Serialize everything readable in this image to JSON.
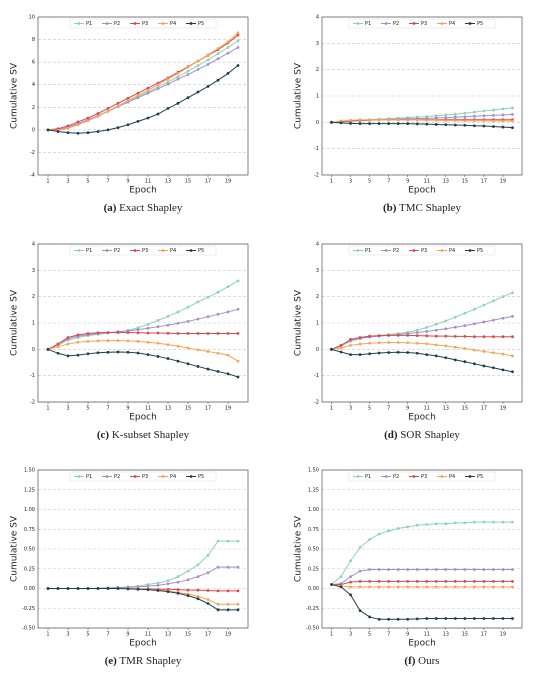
{
  "chart_data": [
    {
      "type": "line",
      "label": "(a)",
      "caption": "Exact Shapley",
      "xlabel": "Epoch",
      "ylabel": "Cumulative SV",
      "legend": "upper center",
      "grid": true,
      "x": [
        1,
        2,
        3,
        4,
        5,
        6,
        7,
        8,
        9,
        10,
        11,
        12,
        13,
        14,
        15,
        16,
        17,
        18,
        19,
        20
      ],
      "xlim": [
        0,
        21
      ],
      "xticks": [
        1,
        3,
        5,
        7,
        9,
        11,
        13,
        15,
        17,
        19
      ],
      "ylim": [
        -4,
        10
      ],
      "yticks": [
        -4,
        -2,
        0,
        2,
        4,
        6,
        8,
        10
      ],
      "series": [
        {
          "name": "P1",
          "color": "#8fd3b6",
          "values": [
            0,
            0,
            0.2,
            0.5,
            0.85,
            1.25,
            1.65,
            2.1,
            2.5,
            2.95,
            3.35,
            3.8,
            4.25,
            4.7,
            5.2,
            5.7,
            6.2,
            6.75,
            7.3,
            7.9
          ]
        },
        {
          "name": "P2",
          "color": "#a58fcf",
          "values": [
            0,
            0,
            0.25,
            0.55,
            0.9,
            1.25,
            1.65,
            2.05,
            2.45,
            2.85,
            3.25,
            3.65,
            4.05,
            4.5,
            4.9,
            5.35,
            5.8,
            6.3,
            6.8,
            7.3
          ]
        },
        {
          "name": "P3",
          "color": "#d94a4a",
          "values": [
            0,
            0.1,
            0.35,
            0.7,
            1.05,
            1.45,
            1.9,
            2.35,
            2.8,
            3.25,
            3.7,
            4.15,
            4.6,
            5.1,
            5.6,
            6.1,
            6.6,
            7.1,
            7.7,
            8.4
          ]
        },
        {
          "name": "P4",
          "color": "#f5a55a",
          "values": [
            0,
            -0.05,
            0.15,
            0.45,
            0.8,
            1.2,
            1.65,
            2.1,
            2.6,
            3.05,
            3.5,
            4.0,
            4.5,
            5.0,
            5.55,
            6.1,
            6.65,
            7.2,
            7.8,
            8.6
          ]
        },
        {
          "name": "P5",
          "color": "#1f3f4f",
          "values": [
            0,
            -0.15,
            -0.25,
            -0.3,
            -0.25,
            -0.15,
            0,
            0.2,
            0.45,
            0.75,
            1.05,
            1.4,
            1.9,
            2.35,
            2.85,
            3.35,
            3.85,
            4.4,
            5.0,
            5.7
          ]
        }
      ]
    },
    {
      "type": "line",
      "label": "(b)",
      "caption": "TMC Shapley",
      "xlabel": "Epoch",
      "ylabel": "Cumulative SV",
      "legend": "upper center",
      "grid": true,
      "x": [
        1,
        2,
        3,
        4,
        5,
        6,
        7,
        8,
        9,
        10,
        11,
        12,
        13,
        14,
        15,
        16,
        17,
        18,
        19,
        20
      ],
      "xlim": [
        0,
        21
      ],
      "xticks": [
        1,
        3,
        5,
        7,
        9,
        11,
        13,
        15,
        17,
        19
      ],
      "ylim": [
        -2,
        4
      ],
      "yticks": [
        -2,
        -1,
        0,
        1,
        2,
        3,
        4
      ],
      "series": [
        {
          "name": "P1",
          "color": "#8fd3b6",
          "values": [
            0,
            0.02,
            0.05,
            0.08,
            0.1,
            0.12,
            0.14,
            0.16,
            0.18,
            0.2,
            0.22,
            0.25,
            0.28,
            0.31,
            0.35,
            0.39,
            0.43,
            0.47,
            0.51,
            0.55
          ]
        },
        {
          "name": "P2",
          "color": "#a58fcf",
          "values": [
            0,
            0.02,
            0.04,
            0.06,
            0.08,
            0.1,
            0.11,
            0.12,
            0.13,
            0.14,
            0.15,
            0.17,
            0.18,
            0.2,
            0.21,
            0.23,
            0.25,
            0.27,
            0.28,
            0.3
          ]
        },
        {
          "name": "P3",
          "color": "#d94a4a",
          "values": [
            0,
            0.03,
            0.06,
            0.08,
            0.09,
            0.1,
            0.1,
            0.1,
            0.1,
            0.1,
            0.1,
            0.1,
            0.1,
            0.1,
            0.1,
            0.1,
            0.1,
            0.1,
            0.1,
            0.1
          ]
        },
        {
          "name": "P4",
          "color": "#f5a55a",
          "values": [
            0,
            0.05,
            0.08,
            0.1,
            0.1,
            0.1,
            0.1,
            0.1,
            0.09,
            0.09,
            0.08,
            0.08,
            0.07,
            0.07,
            0.06,
            0.06,
            0.06,
            0.05,
            0.05,
            0.05
          ]
        },
        {
          "name": "P5",
          "color": "#1f3f4f",
          "values": [
            0,
            -0.02,
            -0.04,
            -0.05,
            -0.05,
            -0.05,
            -0.05,
            -0.05,
            -0.05,
            -0.06,
            -0.07,
            -0.08,
            -0.09,
            -0.1,
            -0.11,
            -0.13,
            -0.14,
            -0.16,
            -0.18,
            -0.2
          ]
        }
      ]
    },
    {
      "type": "line",
      "label": "(c)",
      "caption": "K-subset Shapley",
      "xlabel": "Epoch",
      "ylabel": "Cumulative SV",
      "legend": "upper center",
      "grid": true,
      "x": [
        1,
        2,
        3,
        4,
        5,
        6,
        7,
        8,
        9,
        10,
        11,
        12,
        13,
        14,
        15,
        16,
        17,
        18,
        19,
        20
      ],
      "xlim": [
        0,
        21
      ],
      "xticks": [
        1,
        3,
        5,
        7,
        9,
        11,
        13,
        15,
        17,
        19
      ],
      "ylim": [
        -2,
        4
      ],
      "yticks": [
        -2,
        -1,
        0,
        1,
        2,
        3,
        4
      ],
      "series": [
        {
          "name": "P1",
          "color": "#8fd3b6",
          "values": [
            0,
            0.15,
            0.35,
            0.45,
            0.52,
            0.57,
            0.62,
            0.66,
            0.72,
            0.82,
            0.95,
            1.1,
            1.25,
            1.42,
            1.6,
            1.8,
            1.98,
            2.17,
            2.38,
            2.6
          ]
        },
        {
          "name": "P2",
          "color": "#a58fcf",
          "values": [
            0,
            0.2,
            0.4,
            0.5,
            0.55,
            0.6,
            0.63,
            0.67,
            0.7,
            0.75,
            0.8,
            0.86,
            0.92,
            0.99,
            1.06,
            1.15,
            1.24,
            1.33,
            1.42,
            1.52
          ]
        },
        {
          "name": "P3",
          "color": "#d94a4a",
          "values": [
            0,
            0.2,
            0.45,
            0.55,
            0.6,
            0.63,
            0.64,
            0.64,
            0.64,
            0.63,
            0.62,
            0.62,
            0.61,
            0.6,
            0.6,
            0.6,
            0.6,
            0.6,
            0.6,
            0.6
          ]
        },
        {
          "name": "P4",
          "color": "#f5a55a",
          "values": [
            0,
            0.1,
            0.2,
            0.27,
            0.3,
            0.32,
            0.33,
            0.33,
            0.32,
            0.3,
            0.27,
            0.23,
            0.18,
            0.12,
            0.05,
            -0.02,
            -0.08,
            -0.15,
            -0.22,
            -0.45
          ]
        },
        {
          "name": "P5",
          "color": "#1f3f4f",
          "values": [
            0,
            -0.15,
            -0.25,
            -0.22,
            -0.17,
            -0.13,
            -0.11,
            -0.1,
            -0.11,
            -0.14,
            -0.2,
            -0.27,
            -0.35,
            -0.45,
            -0.55,
            -0.65,
            -0.75,
            -0.84,
            -0.93,
            -1.05
          ]
        }
      ]
    },
    {
      "type": "line",
      "label": "(d)",
      "caption": "SOR Shapley",
      "xlabel": "Epoch",
      "ylabel": "Cumulative SV",
      "legend": "upper center",
      "grid": true,
      "x": [
        1,
        2,
        3,
        4,
        5,
        6,
        7,
        8,
        9,
        10,
        11,
        12,
        13,
        14,
        15,
        16,
        17,
        18,
        19,
        20
      ],
      "xlim": [
        0,
        21
      ],
      "xticks": [
        1,
        3,
        5,
        7,
        9,
        11,
        13,
        15,
        17,
        19
      ],
      "ylim": [
        -2,
        4
      ],
      "yticks": [
        -2,
        -1,
        0,
        1,
        2,
        3,
        4
      ],
      "series": [
        {
          "name": "P1",
          "color": "#8fd3b6",
          "values": [
            0,
            0.12,
            0.3,
            0.4,
            0.47,
            0.52,
            0.56,
            0.6,
            0.65,
            0.73,
            0.83,
            0.95,
            1.08,
            1.22,
            1.37,
            1.52,
            1.68,
            1.84,
            2.0,
            2.15
          ]
        },
        {
          "name": "P2",
          "color": "#a58fcf",
          "values": [
            0,
            0.15,
            0.35,
            0.43,
            0.47,
            0.5,
            0.53,
            0.56,
            0.6,
            0.64,
            0.68,
            0.73,
            0.78,
            0.84,
            0.9,
            0.97,
            1.04,
            1.11,
            1.18,
            1.25
          ]
        },
        {
          "name": "P3",
          "color": "#d94a4a",
          "values": [
            0,
            0.15,
            0.38,
            0.45,
            0.5,
            0.52,
            0.53,
            0.53,
            0.53,
            0.52,
            0.51,
            0.5,
            0.5,
            0.49,
            0.49,
            0.48,
            0.48,
            0.48,
            0.48,
            0.48
          ]
        },
        {
          "name": "P4",
          "color": "#f5a55a",
          "values": [
            0,
            0.05,
            0.15,
            0.2,
            0.23,
            0.25,
            0.26,
            0.26,
            0.25,
            0.23,
            0.21,
            0.17,
            0.13,
            0.08,
            0.03,
            -0.03,
            -0.08,
            -0.13,
            -0.18,
            -0.25
          ]
        },
        {
          "name": "P5",
          "color": "#1f3f4f",
          "values": [
            0,
            -0.1,
            -0.2,
            -0.2,
            -0.17,
            -0.14,
            -0.12,
            -0.11,
            -0.12,
            -0.15,
            -0.2,
            -0.25,
            -0.32,
            -0.4,
            -0.47,
            -0.55,
            -0.63,
            -0.7,
            -0.78,
            -0.85
          ]
        }
      ]
    },
    {
      "type": "line",
      "label": "(e)",
      "caption": "TMR Shapley",
      "xlabel": "Epoch",
      "ylabel": "Cumulative SV",
      "legend": "upper center",
      "grid": true,
      "x": [
        1,
        2,
        3,
        4,
        5,
        6,
        7,
        8,
        9,
        10,
        11,
        12,
        13,
        14,
        15,
        16,
        17,
        18,
        19,
        20
      ],
      "xlim": [
        0,
        21
      ],
      "xticks": [
        1,
        3,
        5,
        7,
        9,
        11,
        13,
        15,
        17,
        19
      ],
      "ylim": [
        -0.5,
        1.5
      ],
      "yticks": [
        {
          "value": -0.5,
          "label": "-0.50"
        },
        {
          "value": -0.25,
          "label": "-0.25"
        },
        {
          "value": 0,
          "label": "0.00"
        },
        {
          "value": 0.25,
          "label": "0.25"
        },
        {
          "value": 0.5,
          "label": "0.50"
        },
        {
          "value": 0.75,
          "label": "0.75"
        },
        {
          "value": 1,
          "label": "1.00"
        },
        {
          "value": 1.25,
          "label": "1.25"
        },
        {
          "value": 1.5,
          "label": "1.50"
        }
      ],
      "series": [
        {
          "name": "P1",
          "color": "#8fd3b6",
          "values": [
            0,
            0,
            0,
            0,
            0,
            0.005,
            0.01,
            0.015,
            0.02,
            0.03,
            0.05,
            0.07,
            0.1,
            0.15,
            0.22,
            0.3,
            0.42,
            0.6,
            0.6,
            0.6
          ]
        },
        {
          "name": "P2",
          "color": "#a58fcf",
          "values": [
            0,
            0,
            0,
            0,
            0,
            0,
            0.005,
            0.01,
            0.015,
            0.02,
            0.03,
            0.04,
            0.06,
            0.08,
            0.11,
            0.15,
            0.2,
            0.27,
            0.27,
            0.27
          ]
        },
        {
          "name": "P3",
          "color": "#d94a4a",
          "values": [
            0,
            0,
            0,
            0,
            0,
            0,
            0,
            0,
            0,
            -0.005,
            -0.005,
            -0.01,
            -0.01,
            -0.015,
            -0.02,
            -0.02,
            -0.025,
            -0.03,
            -0.03,
            -0.03
          ]
        },
        {
          "name": "P4",
          "color": "#f5a55a",
          "values": [
            0,
            0,
            0,
            0,
            0,
            0,
            0,
            0,
            0,
            -0.005,
            -0.01,
            -0.02,
            -0.03,
            -0.05,
            -0.07,
            -0.1,
            -0.14,
            -0.2,
            -0.2,
            -0.2
          ]
        },
        {
          "name": "P5",
          "color": "#1f3f4f",
          "values": [
            0,
            0,
            0,
            0,
            0,
            0,
            0,
            0,
            -0.005,
            -0.01,
            -0.015,
            -0.025,
            -0.04,
            -0.06,
            -0.09,
            -0.13,
            -0.19,
            -0.27,
            -0.27,
            -0.27
          ]
        }
      ]
    },
    {
      "type": "line",
      "label": "(f)",
      "caption": "Ours",
      "xlabel": "Epoch",
      "ylabel": "Cumulative SV",
      "legend": "upper center",
      "grid": true,
      "x": [
        1,
        2,
        3,
        4,
        5,
        6,
        7,
        8,
        9,
        10,
        11,
        12,
        13,
        14,
        15,
        16,
        17,
        18,
        19,
        20
      ],
      "xlim": [
        0,
        21
      ],
      "xticks": [
        1,
        3,
        5,
        7,
        9,
        11,
        13,
        15,
        17,
        19
      ],
      "ylim": [
        -0.5,
        1.5
      ],
      "yticks": [
        {
          "value": -0.5,
          "label": "-0.50"
        },
        {
          "value": -0.25,
          "label": "-0.25"
        },
        {
          "value": 0,
          "label": "0.00"
        },
        {
          "value": 0.25,
          "label": "0.25"
        },
        {
          "value": 0.5,
          "label": "0.50"
        },
        {
          "value": 0.75,
          "label": "0.75"
        },
        {
          "value": 1,
          "label": "1.00"
        },
        {
          "value": 1.25,
          "label": "1.25"
        },
        {
          "value": 1.5,
          "label": "1.50"
        }
      ],
      "series": [
        {
          "name": "P1",
          "color": "#8fd3b6",
          "values": [
            0.05,
            0.15,
            0.35,
            0.52,
            0.62,
            0.69,
            0.73,
            0.76,
            0.78,
            0.8,
            0.81,
            0.82,
            0.82,
            0.83,
            0.83,
            0.84,
            0.84,
            0.84,
            0.84,
            0.84
          ]
        },
        {
          "name": "P2",
          "color": "#a58fcf",
          "values": [
            0.05,
            0.06,
            0.15,
            0.22,
            0.24,
            0.24,
            0.24,
            0.24,
            0.24,
            0.24,
            0.24,
            0.24,
            0.24,
            0.24,
            0.24,
            0.24,
            0.24,
            0.24,
            0.24,
            0.24
          ]
        },
        {
          "name": "P3",
          "color": "#d94a4a",
          "values": [
            0.05,
            0.05,
            0.08,
            0.09,
            0.09,
            0.09,
            0.09,
            0.09,
            0.09,
            0.09,
            0.09,
            0.09,
            0.09,
            0.09,
            0.09,
            0.09,
            0.09,
            0.09,
            0.09,
            0.09
          ]
        },
        {
          "name": "P4",
          "color": "#f5a55a",
          "values": [
            0.05,
            0.03,
            0.02,
            0.02,
            0.02,
            0.02,
            0.02,
            0.02,
            0.02,
            0.02,
            0.02,
            0.02,
            0.02,
            0.02,
            0.02,
            0.02,
            0.02,
            0.02,
            0.02,
            0.02
          ]
        },
        {
          "name": "P5",
          "color": "#1f3f4f",
          "values": [
            0.05,
            0.02,
            -0.08,
            -0.28,
            -0.36,
            -0.39,
            -0.39,
            -0.39,
            -0.39,
            -0.385,
            -0.38,
            -0.38,
            -0.38,
            -0.38,
            -0.38,
            -0.38,
            -0.38,
            -0.38,
            -0.38,
            -0.38
          ]
        }
      ]
    }
  ]
}
